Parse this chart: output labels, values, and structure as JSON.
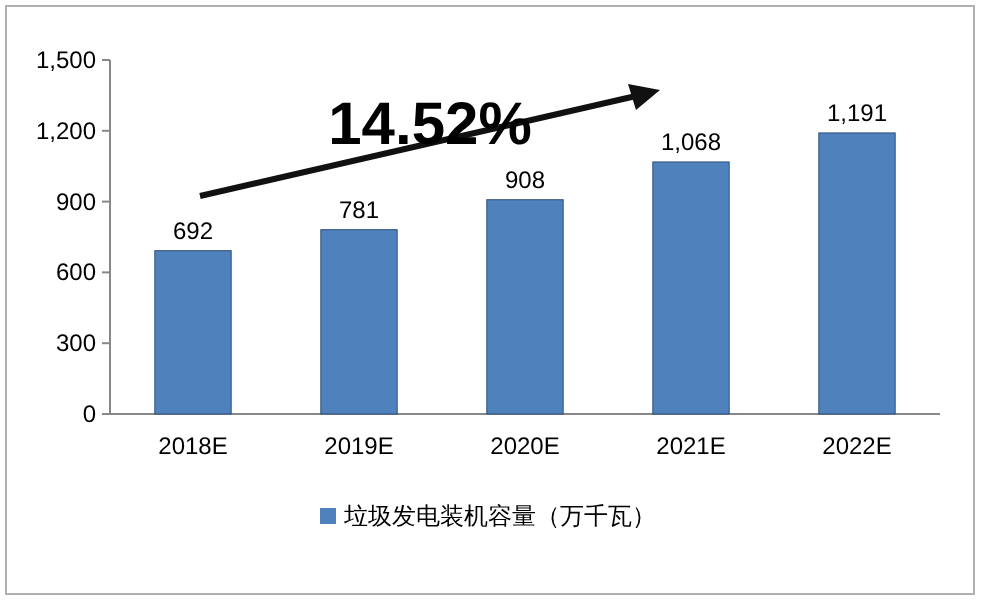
{
  "chart_data": {
    "type": "bar",
    "categories": [
      "2018E",
      "2019E",
      "2020E",
      "2021E",
      "2022E"
    ],
    "series": [
      {
        "name": "垃圾发电装机容量（万千瓦）",
        "color": "#4f81bd",
        "values": [
          692,
          781,
          908,
          1068,
          1191
        ],
        "value_labels": [
          "692",
          "781",
          "908",
          "1,068",
          "1,191"
        ]
      }
    ],
    "ylim": [
      0,
      1500
    ],
    "yticks": [
      0,
      300,
      600,
      900,
      {
        "value": 1200,
        "label": "1,200"
      },
      {
        "value": 1500,
        "label": "1,500"
      }
    ],
    "annotations": [
      "14.52%"
    ],
    "legend": "bottom"
  }
}
